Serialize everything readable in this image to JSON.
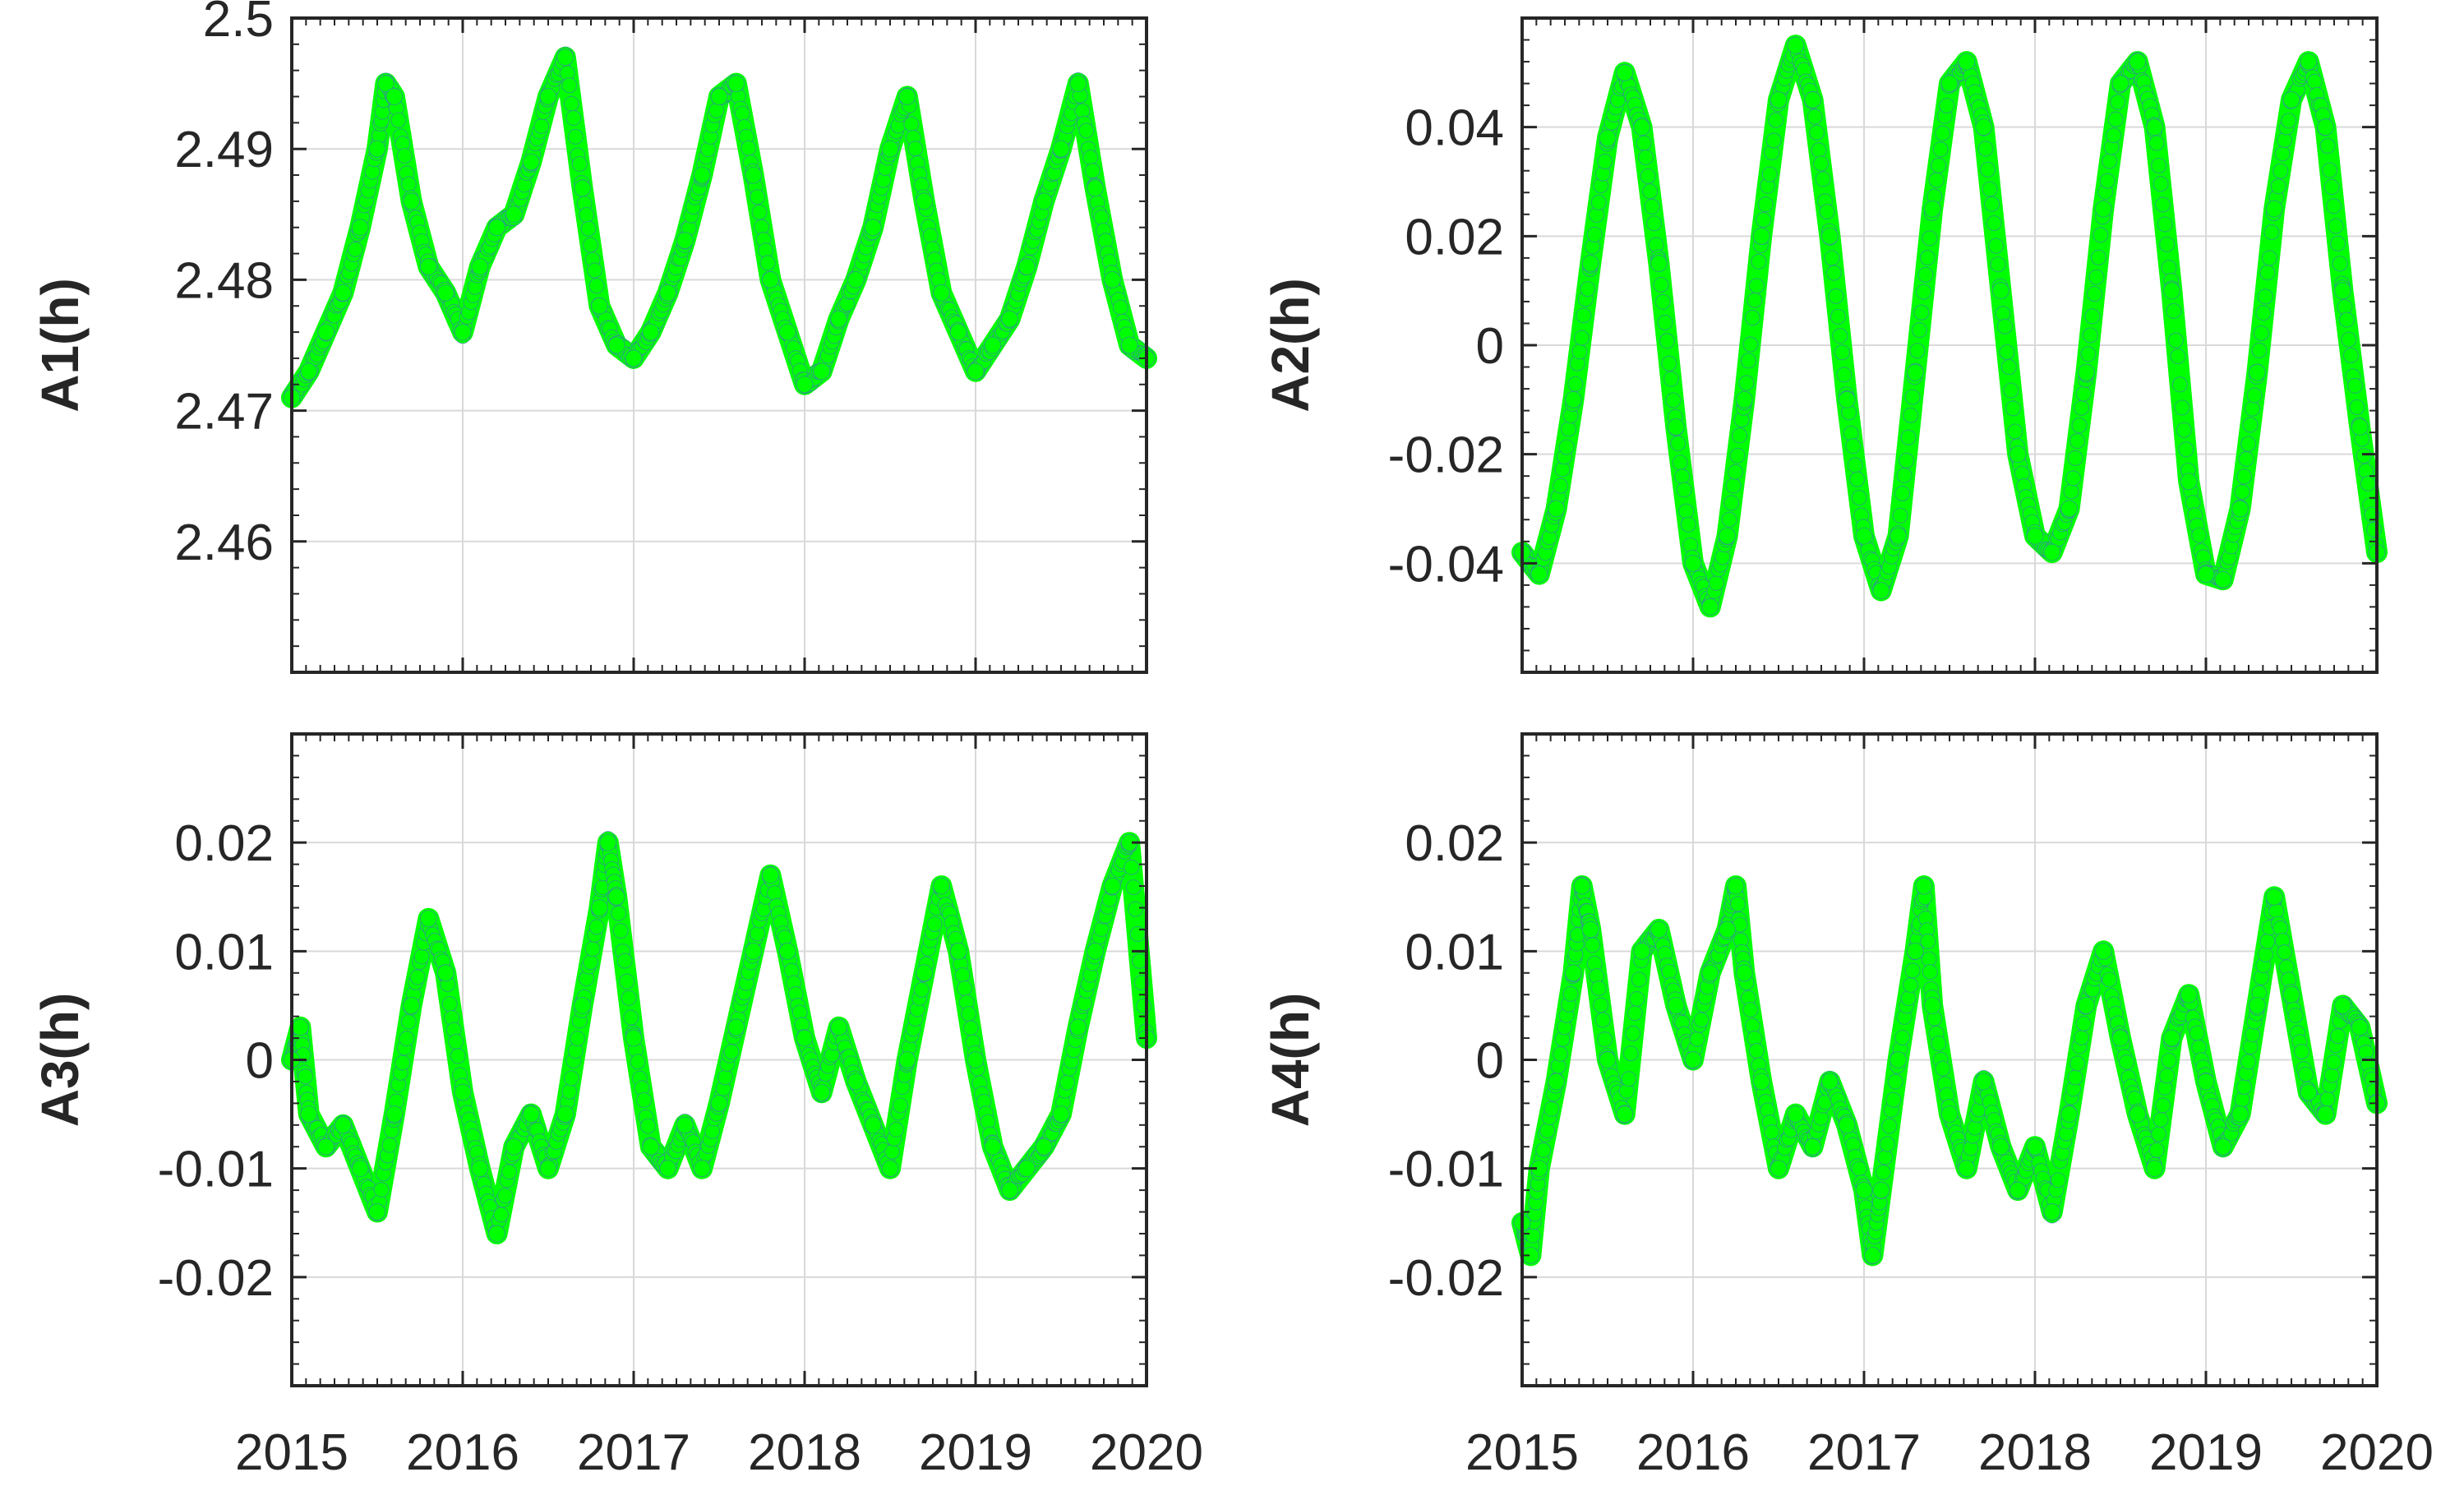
{
  "colors": {
    "series": "#00ff00",
    "marker_edge": "#4472c4",
    "grid": "#d9d9d9",
    "axis": "#262626"
  },
  "chart_data": [
    {
      "type": "scatter",
      "ylabel": "A1(h)",
      "xlabel": "",
      "xlim": [
        2015,
        2020
      ],
      "ylim": [
        2.45,
        2.5
      ],
      "xticks": [
        2015,
        2016,
        2017,
        2018,
        2019,
        2020
      ],
      "xtick_labels": [
        "",
        "",
        "",
        "",
        "",
        ""
      ],
      "yticks": [
        2.46,
        2.47,
        2.48,
        2.49,
        2.5
      ],
      "ytick_labels": [
        "2.46",
        "2.47",
        "2.48",
        "2.49",
        "2.5"
      ],
      "grid": true,
      "series": [
        {
          "marker": "circle",
          "x": [
            2015.0,
            2015.1,
            2015.2,
            2015.3,
            2015.4,
            2015.5,
            2015.55,
            2015.6,
            2015.7,
            2015.8,
            2015.9,
            2016.0,
            2016.1,
            2016.2,
            2016.3,
            2016.4,
            2016.5,
            2016.6,
            2016.7,
            2016.8,
            2016.9,
            2017.0,
            2017.1,
            2017.2,
            2017.3,
            2017.4,
            2017.5,
            2017.6,
            2017.7,
            2017.8,
            2017.9,
            2018.0,
            2018.1,
            2018.2,
            2018.3,
            2018.4,
            2018.5,
            2018.6,
            2018.7,
            2018.8,
            2018.9,
            2019.0,
            2019.1,
            2019.2,
            2019.3,
            2019.4,
            2019.5,
            2019.6,
            2019.7,
            2019.8,
            2019.9,
            2020.0
          ],
          "y": [
            2.471,
            2.473,
            2.476,
            2.479,
            2.484,
            2.49,
            2.495,
            2.494,
            2.486,
            2.481,
            2.479,
            2.476,
            2.481,
            2.484,
            2.485,
            2.489,
            2.494,
            2.497,
            2.487,
            2.478,
            2.475,
            2.474,
            2.476,
            2.479,
            2.483,
            2.488,
            2.494,
            2.495,
            2.488,
            2.48,
            2.476,
            2.472,
            2.473,
            2.477,
            2.48,
            2.484,
            2.49,
            2.494,
            2.486,
            2.479,
            2.476,
            2.473,
            2.475,
            2.477,
            2.481,
            2.486,
            2.49,
            2.495,
            2.487,
            2.48,
            2.475,
            2.474
          ]
        }
      ]
    },
    {
      "type": "scatter",
      "ylabel": "A2(h)",
      "xlabel": "",
      "xlim": [
        2015,
        2020
      ],
      "ylim": [
        -0.06,
        0.06
      ],
      "xticks": [
        2015,
        2016,
        2017,
        2018,
        2019,
        2020
      ],
      "xtick_labels": [
        "",
        "",
        "",
        "",
        "",
        ""
      ],
      "yticks": [
        -0.04,
        -0.02,
        0,
        0.02,
        0.04
      ],
      "ytick_labels": [
        "-0.04",
        "-0.02",
        "0",
        "0.02",
        "0.04"
      ],
      "grid": true,
      "series": [
        {
          "marker": "circle",
          "x": [
            2015.0,
            2015.1,
            2015.2,
            2015.3,
            2015.4,
            2015.5,
            2015.6,
            2015.7,
            2015.8,
            2015.9,
            2016.0,
            2016.1,
            2016.2,
            2016.3,
            2016.4,
            2016.5,
            2016.6,
            2016.7,
            2016.8,
            2016.9,
            2017.0,
            2017.1,
            2017.2,
            2017.3,
            2017.4,
            2017.5,
            2017.6,
            2017.7,
            2017.8,
            2017.9,
            2018.0,
            2018.1,
            2018.2,
            2018.3,
            2018.4,
            2018.5,
            2018.6,
            2018.7,
            2018.8,
            2018.9,
            2019.0,
            2019.1,
            2019.2,
            2019.3,
            2019.4,
            2019.5,
            2019.6,
            2019.7,
            2019.8,
            2019.9,
            2020.0
          ],
          "y": [
            -0.038,
            -0.042,
            -0.03,
            -0.01,
            0.015,
            0.038,
            0.05,
            0.04,
            0.015,
            -0.015,
            -0.04,
            -0.048,
            -0.035,
            -0.01,
            0.02,
            0.045,
            0.055,
            0.045,
            0.02,
            -0.01,
            -0.035,
            -0.045,
            -0.035,
            -0.005,
            0.025,
            0.048,
            0.052,
            0.04,
            0.01,
            -0.02,
            -0.035,
            -0.038,
            -0.03,
            -0.005,
            0.025,
            0.048,
            0.052,
            0.04,
            0.01,
            -0.025,
            -0.042,
            -0.043,
            -0.03,
            -0.005,
            0.025,
            0.045,
            0.052,
            0.04,
            0.01,
            -0.015,
            -0.038
          ]
        }
      ]
    },
    {
      "type": "scatter",
      "ylabel": "A3(h)",
      "xlabel": "",
      "xlim": [
        2015,
        2020
      ],
      "ylim": [
        -0.03,
        0.03
      ],
      "xticks": [
        2015,
        2016,
        2017,
        2018,
        2019,
        2020
      ],
      "xtick_labels": [
        "2015",
        "2016",
        "2017",
        "2018",
        "2019",
        "2020"
      ],
      "yticks": [
        -0.02,
        -0.01,
        0,
        0.01,
        0.02
      ],
      "ytick_labels": [
        "-0.02",
        "-0.01",
        "0",
        "0.01",
        "0.02"
      ],
      "grid": true,
      "series": [
        {
          "marker": "circle",
          "x": [
            2015.0,
            2015.05,
            2015.1,
            2015.2,
            2015.3,
            2015.4,
            2015.5,
            2015.6,
            2015.7,
            2015.8,
            2015.9,
            2016.0,
            2016.1,
            2016.2,
            2016.3,
            2016.4,
            2016.5,
            2016.6,
            2016.7,
            2016.8,
            2016.85,
            2016.9,
            2017.0,
            2017.1,
            2017.2,
            2017.3,
            2017.4,
            2017.5,
            2017.6,
            2017.7,
            2017.8,
            2017.9,
            2018.0,
            2018.1,
            2018.2,
            2018.3,
            2018.4,
            2018.5,
            2018.6,
            2018.7,
            2018.8,
            2018.9,
            2019.0,
            2019.1,
            2019.2,
            2019.3,
            2019.4,
            2019.5,
            2019.6,
            2019.7,
            2019.8,
            2019.9,
            2020.0
          ],
          "y": [
            0.0,
            0.003,
            -0.005,
            -0.008,
            -0.006,
            -0.01,
            -0.014,
            -0.005,
            0.005,
            0.013,
            0.008,
            -0.003,
            -0.01,
            -0.016,
            -0.008,
            -0.005,
            -0.01,
            -0.005,
            0.005,
            0.014,
            0.02,
            0.015,
            0.002,
            -0.008,
            -0.01,
            -0.006,
            -0.01,
            -0.004,
            0.003,
            0.01,
            0.017,
            0.01,
            0.002,
            -0.003,
            0.003,
            -0.002,
            -0.006,
            -0.01,
            0.0,
            0.008,
            0.016,
            0.01,
            0.0,
            -0.008,
            -0.012,
            -0.01,
            -0.008,
            -0.005,
            0.003,
            0.01,
            0.016,
            0.02,
            0.002
          ]
        }
      ]
    },
    {
      "type": "scatter",
      "ylabel": "A4(h)",
      "xlabel": "",
      "xlim": [
        2015,
        2020
      ],
      "ylim": [
        -0.03,
        0.03
      ],
      "xticks": [
        2015,
        2016,
        2017,
        2018,
        2019,
        2020
      ],
      "xtick_labels": [
        "2015",
        "2016",
        "2017",
        "2018",
        "2019",
        "2020"
      ],
      "yticks": [
        -0.02,
        -0.01,
        0,
        0.01,
        0.02
      ],
      "ytick_labels": [
        "-0.02",
        "-0.01",
        "0",
        "0.01",
        "0.02"
      ],
      "grid": true,
      "series": [
        {
          "marker": "circle",
          "x": [
            2015.0,
            2015.05,
            2015.1,
            2015.2,
            2015.3,
            2015.35,
            2015.4,
            2015.5,
            2015.6,
            2015.7,
            2015.8,
            2015.9,
            2016.0,
            2016.1,
            2016.2,
            2016.25,
            2016.3,
            2016.4,
            2016.5,
            2016.6,
            2016.7,
            2016.8,
            2016.9,
            2017.0,
            2017.05,
            2017.1,
            2017.2,
            2017.3,
            2017.35,
            2017.4,
            2017.5,
            2017.6,
            2017.7,
            2017.8,
            2017.9,
            2018.0,
            2018.1,
            2018.2,
            2018.3,
            2018.4,
            2018.5,
            2018.6,
            2018.7,
            2018.8,
            2018.9,
            2019.0,
            2019.1,
            2019.2,
            2019.3,
            2019.4,
            2019.5,
            2019.6,
            2019.7,
            2019.8,
            2019.9,
            2020.0
          ],
          "y": [
            -0.015,
            -0.018,
            -0.01,
            -0.002,
            0.008,
            0.016,
            0.012,
            0.0,
            -0.005,
            0.01,
            0.012,
            0.005,
            0.0,
            0.008,
            0.012,
            0.016,
            0.008,
            -0.002,
            -0.01,
            -0.005,
            -0.008,
            -0.002,
            -0.006,
            -0.012,
            -0.018,
            -0.012,
            0.0,
            0.01,
            0.016,
            0.005,
            -0.005,
            -0.01,
            -0.002,
            -0.008,
            -0.012,
            -0.008,
            -0.014,
            -0.005,
            0.005,
            0.01,
            0.002,
            -0.005,
            -0.01,
            0.002,
            0.006,
            -0.002,
            -0.008,
            -0.005,
            0.005,
            0.015,
            0.006,
            -0.003,
            -0.005,
            0.005,
            0.003,
            -0.004
          ]
        }
      ]
    }
  ]
}
